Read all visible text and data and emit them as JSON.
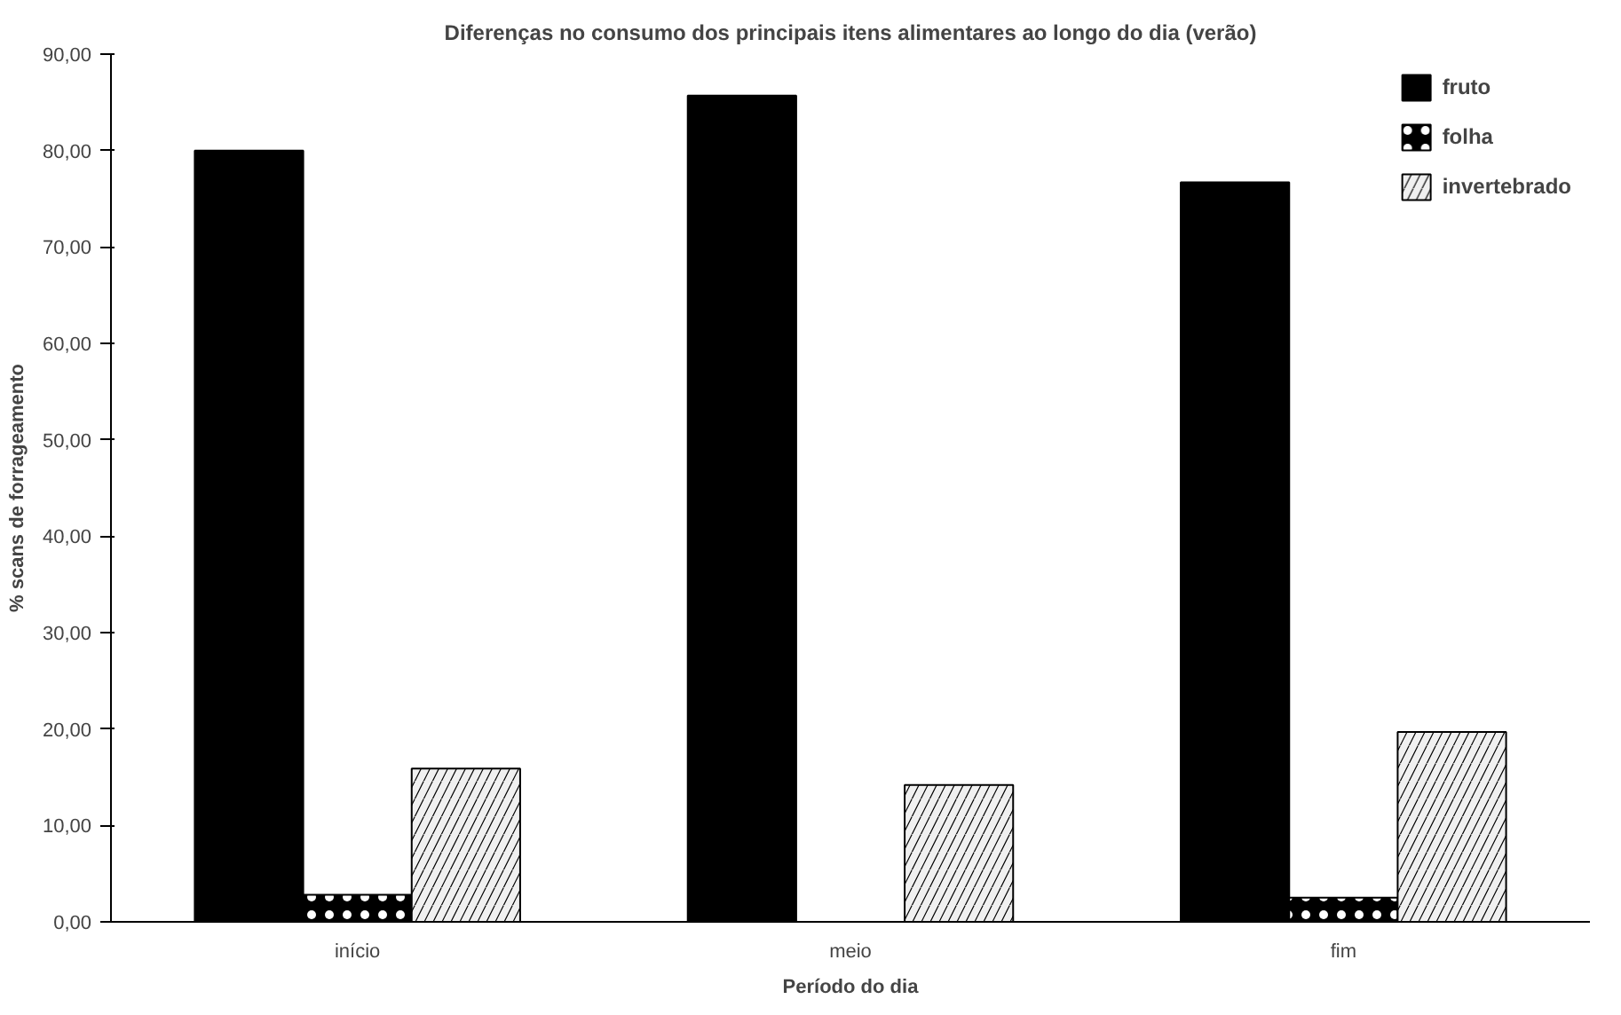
{
  "chart_data": {
    "type": "bar",
    "title": "Diferenças no consumo dos principais itens alimentares ao longo do dia (verão)",
    "xlabel": "Período do dia",
    "ylabel": "% scans de forrageamento",
    "categories": [
      "início",
      "meio",
      "fim"
    ],
    "series": [
      {
        "name": "fruto",
        "color": "#000000",
        "values": [
          80.0,
          85.7,
          76.7
        ]
      },
      {
        "name": "folha",
        "color": "#000000",
        "values": [
          2.8,
          0,
          2.5
        ]
      },
      {
        "name": "invertebrado",
        "color": "#f0f0f0",
        "values": [
          15.9,
          14.2,
          19.7
        ]
      }
    ],
    "ylim": [
      0,
      90
    ],
    "yticks": [
      {
        "value": 0,
        "label": "0,00"
      },
      {
        "value": 10,
        "label": "10,00"
      },
      {
        "value": 20,
        "label": "20,00"
      },
      {
        "value": 30,
        "label": "30,00"
      },
      {
        "value": 40,
        "label": "40,00"
      },
      {
        "value": 50,
        "label": "50,00"
      },
      {
        "value": 60,
        "label": "60,00"
      },
      {
        "value": 70,
        "label": "70,00"
      },
      {
        "value": 80,
        "label": "80,00"
      },
      {
        "value": 90,
        "label": "90,00"
      }
    ],
    "legend": "top right",
    "grid": false
  }
}
